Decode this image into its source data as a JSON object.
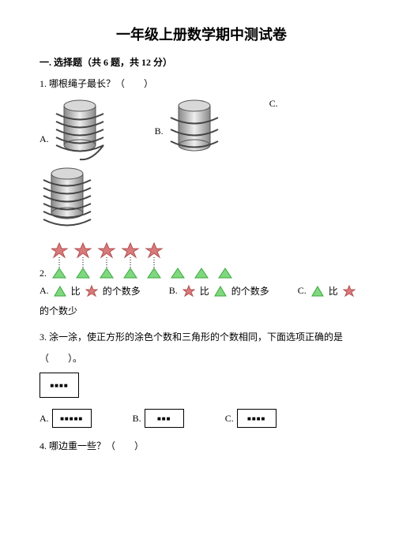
{
  "title": "一年级上册数学期中测试卷",
  "section1": "一. 选择题（共 6 题，共 12 分）",
  "q1": {
    "text": "1. 哪根绳子最长？（　　）",
    "optA": "A.",
    "optB": "B.",
    "optC": "C.",
    "cylinder": {
      "body_fill": "linear-gradient(to right,#888,#eee,#888)",
      "top_fill": "#d8d8d8",
      "stroke": "#555",
      "rope": "#444"
    }
  },
  "q2": {
    "num": "2.",
    "stars": 5,
    "triangles_row": 8,
    "star_fill": "#d97b7b",
    "star_stroke": "#b05050",
    "tri_fill": "#7fd87f",
    "tri_stroke": "#3aa83a",
    "optA_pre": "A.",
    "optA_mid": "比",
    "optA_post": "的个数多",
    "optB_pre": "B.",
    "optB_mid": "比",
    "optB_post": "的个数多",
    "optC_pre": "C.",
    "optC_mid": "比",
    "tail": "的个数少"
  },
  "q3": {
    "text": "3. 涂一涂，使正方形的涂色个数和三角形的个数相同，下面选项正确的是",
    "text2": "（　　）。",
    "given_dots": "■■■■",
    "optA": "A.",
    "optA_dots": "■■■■■",
    "optB": "B.",
    "optB_dots": "■■■",
    "optC": "C.",
    "optC_dots": "■■■■"
  },
  "q4": {
    "text": "4. 哪边重一些？（　　）"
  }
}
